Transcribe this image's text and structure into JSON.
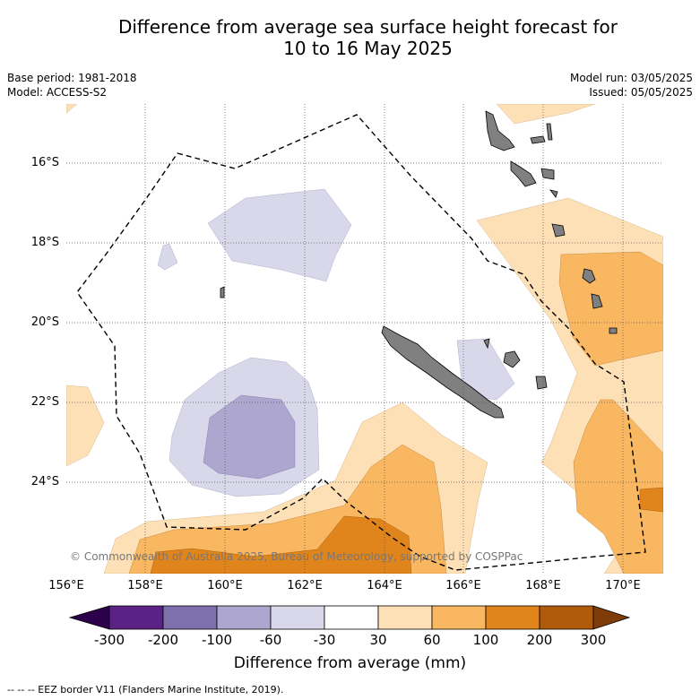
{
  "title_line1": "Difference from average sea surface height forecast for",
  "title_line2": "10 to 16 May 2025",
  "meta_left": {
    "base_period": "Base period: 1981-2018",
    "model": "Model: ACCESS-S2"
  },
  "meta_right": {
    "model_run": "Model run: 03/05/2025",
    "issued": "Issued: 05/05/2025"
  },
  "lat_ticks": [
    "16°S",
    "18°S",
    "20°S",
    "22°S",
    "24°S"
  ],
  "lon_ticks": [
    "156°E",
    "158°E",
    "160°E",
    "162°E",
    "164°E",
    "166°E",
    "168°E",
    "170°E"
  ],
  "copyright": "© Commonwealth of Australia 2025, Bureau of Meteorology, supported by COSPPac",
  "colorbar": {
    "ticks": [
      "-300",
      "-200",
      "-100",
      "-60",
      "-30",
      "30",
      "60",
      "100",
      "200",
      "300"
    ],
    "colors": [
      "#5a2284",
      "#7e6fad",
      "#ada6cf",
      "#d8d8ea",
      "#ffffff",
      "#fde0b6",
      "#f9b762",
      "#e0841c",
      "#b05a0c"
    ],
    "under_color": "#2d004b",
    "over_color": "#7f3b08",
    "title": "Difference from average (mm)"
  },
  "footnote": "--  --  -- EEZ border V11 (Flanders Marine Institute, 2019)."
}
